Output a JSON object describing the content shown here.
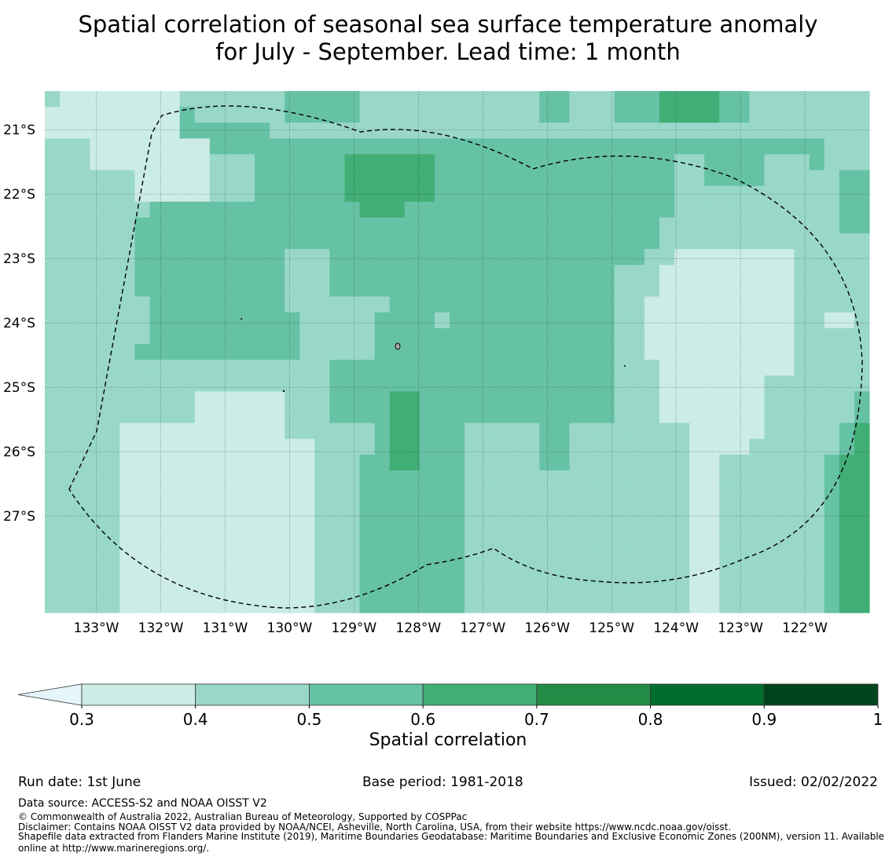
{
  "title_line1": "Spatial correlation of seasonal sea surface temperature anomaly",
  "title_line2": "for July - September. Lead time: 1 month",
  "colors": {
    "bins": [
      "#ccece6",
      "#99d8c9",
      "#66c2a4",
      "#41ae76",
      "#238b45",
      "#006d2c",
      "#00441b"
    ],
    "under": "#e5f5f9",
    "grid": "#333333"
  },
  "chart_data": {
    "type": "heatmap",
    "xlabel": "",
    "ylabel": "",
    "xlim": [
      -133.8,
      -121.0
    ],
    "ylim": [
      -28.5,
      -20.4
    ],
    "x_ticks": [
      -133,
      -132,
      -131,
      -130,
      -129,
      -128,
      -127,
      -126,
      -125,
      -124,
      -123,
      -122
    ],
    "x_tick_labels": [
      "133°W",
      "132°W",
      "131°W",
      "130°W",
      "129°W",
      "128°W",
      "127°W",
      "126°W",
      "125°W",
      "124°W",
      "123°W",
      "122°W"
    ],
    "y_ticks": [
      -21,
      -22,
      -23,
      -24,
      -25,
      -26,
      -27
    ],
    "y_tick_labels": [
      "21°S",
      "22°S",
      "23°S",
      "24°S",
      "25°S",
      "26°S",
      "27°S"
    ],
    "grid": true,
    "cell_size_deg": 0.25,
    "value_bin_rows_north_to_south": [
      "1000000001111111222221111111111112211122233332211111111",
      "0000000002111111222221111111111112211122233332211111111",
      "0000000002222221111111111111111111111111111111111111111",
      "1110000000022222222222222222222222222222222222222222111",
      "1110000000011122222233333322222222222222221122221112111",
      "1111110000011122222233333322222222222222221122221111122",
      "1111110000011122222233333322222222222222221111111111122",
      "1111111222222222222223332222222222222222221111111111122",
      "1111112222222222222222222222222222222222211111111111122",
      "1111112222222222222222222222222222222222211111111111111",
      "1111112222222222111222222222222222222222110000000011111",
      "1111112222222222111222222222222222222211100000000011111",
      "1111112222222222111222222222222222222211100000000011111",
      "1111111222222222111111122222222222222211000000000011111",
      "1111111222222222211111222212222222222211000000000011001",
      "1111111222222222211111222222222222222211000000000011111",
      "1111112222222222211111222222222222222211000000000011111",
      "1111111111111111111222222222222222222211100000000011111",
      "1111111111111111111222222222222222222211100000001111111",
      "1111111111000000111222233222222222222211100000001111112",
      "1111111111000000111222233222222222222211100000001111112",
      "1111100000000000111111233222111112211111111000001111123",
      "1111100000000000001111233222111112211111111000011111123",
      "1111100000000000001112233222111112211111111001111111233",
      "1111100000000000001112222222111111111111111001111111233",
      "1111100000000000001112222222111111111111111001111111233",
      "1111100000000000001112222222111111111111111001111111233",
      "1111100000000000001112222222111111111111111001111111233",
      "1111100000000000001112222222111111111111111001111111233",
      "1111100000000000001112222222111111111111111001111111233",
      "1111100000000000001112222222111111111111111001111111233",
      "1111100000000000001112222222111111111111111001111111233",
      "1111100000000000001112222222111111111111111001111111233"
    ],
    "colorbar": {
      "type": "colorbar",
      "boundaries": [
        0.3,
        0.4,
        0.5,
        0.6,
        0.7,
        0.8,
        0.9,
        1.0
      ],
      "tick_labels": [
        "0.3",
        "0.4",
        "0.5",
        "0.6",
        "0.7",
        "0.8",
        "0.9",
        "1"
      ],
      "extend": "min",
      "label": "Spatial correlation"
    }
  },
  "footer": {
    "run_date": "Run date: 1st June",
    "base_period": "Base period: 1981-2018",
    "issued": "Issued: 02/02/2022",
    "data_source": "Data source: ACCESS-S2 and NOAA OISST V2",
    "copyright": "© Commonwealth of Australia 2022, Australian Bureau of Meteorology, Supported by COSPPac",
    "disclaimer": "Disclaimer: Contains NOAA OISST V2 data provided by NOAA/NCEI, Asheville, North Carolina, USA, from their website https://www.ncdc.noaa.gov/oisst.",
    "shapefile_line1": "Shapefile data extracted from Flanders Marine Institute (2019), Maritime Boundaries Geodatabase: Maritime Boundaries and Exclusive Economic Zones (200NM), version 11. Available",
    "shapefile_line2": "online at http://www.marineregions.org/."
  }
}
